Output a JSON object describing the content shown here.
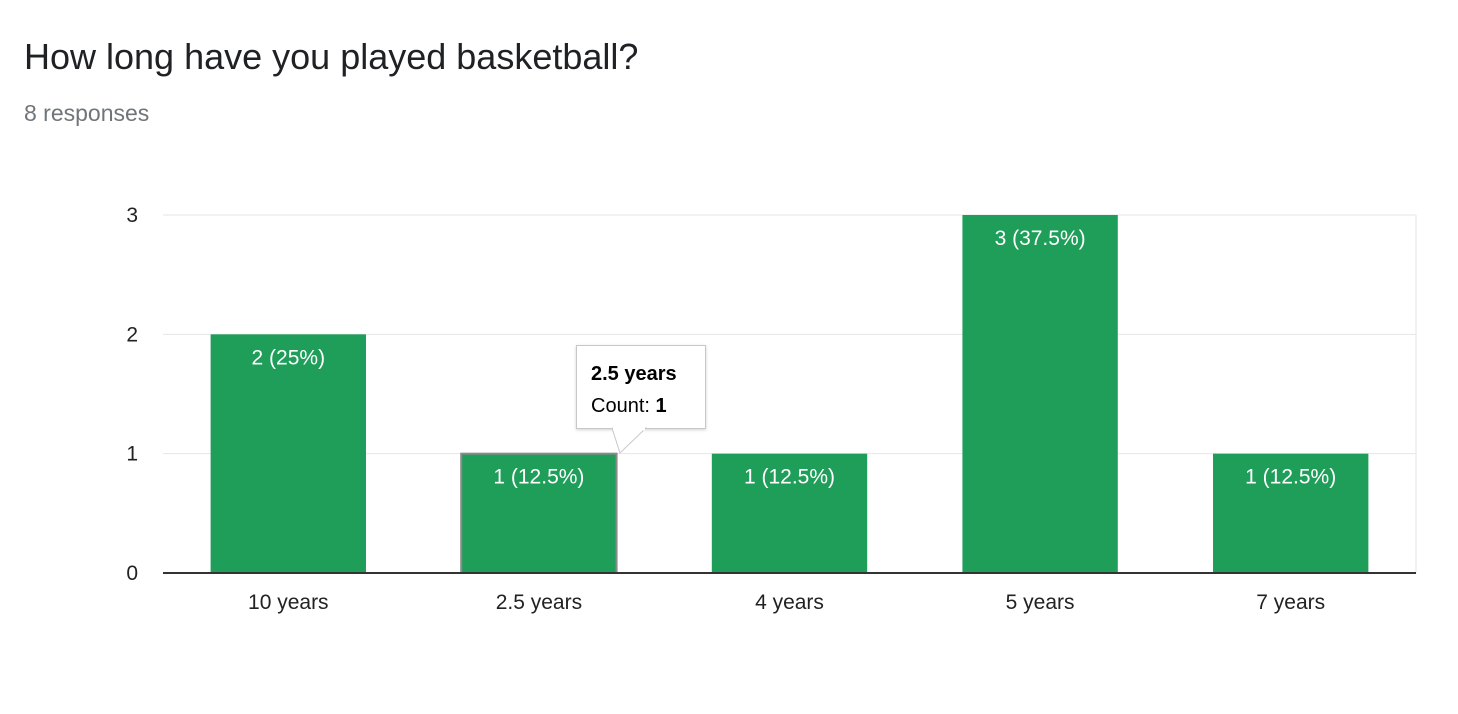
{
  "question": {
    "title": "How long have you played basketball?",
    "response_count": "8 responses"
  },
  "chart_data": {
    "type": "bar",
    "categories": [
      "10 years",
      "2.5 years",
      "4 years",
      "5 years",
      "7 years"
    ],
    "values": [
      2,
      1,
      1,
      3,
      1
    ],
    "data_labels": [
      "2 (25%)",
      "1 (12.5%)",
      "1 (12.5%)",
      "3 (37.5%)",
      "1 (12.5%)"
    ],
    "yticks": [
      0,
      1,
      2,
      3
    ],
    "ylim": [
      0,
      3
    ],
    "grid": true,
    "bar_color": "#1f9e5a",
    "highlighted_index": 1
  },
  "tooltip": {
    "title": "2.5 years",
    "count_label": "Count: ",
    "count_value": "1"
  }
}
